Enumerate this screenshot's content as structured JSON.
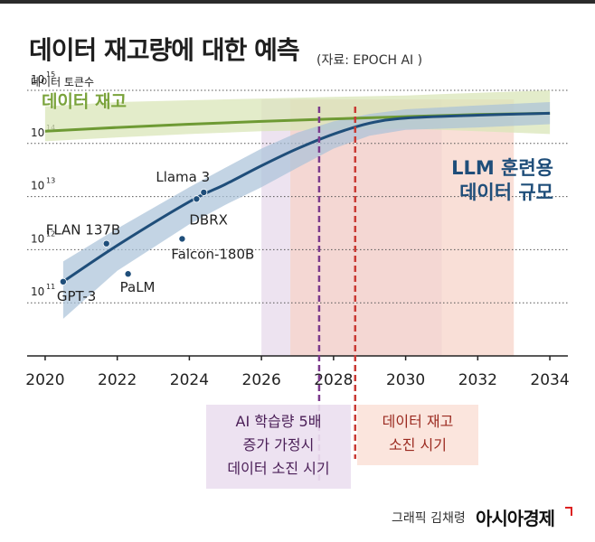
{
  "header": {
    "title": "데이터 재고량에 대한 예측",
    "source": "(자료: EPOCH AI )"
  },
  "footer": {
    "credit": "그래픽 김채령",
    "brand": "아시아경제"
  },
  "chart_data": {
    "type": "line",
    "ylabel": "데이터 토큰수",
    "yscale": "log",
    "ylim": [
      10000000000.0,
      1000000000000000.0
    ],
    "xlim": [
      2019.5,
      2034.5
    ],
    "x_ticks": [
      2020,
      2022,
      2024,
      2026,
      2028,
      2030,
      2032,
      2034
    ],
    "y_ticks": [
      {
        "value": 100000000000.0,
        "base": "10",
        "exp": "11"
      },
      {
        "value": 1000000000000.0,
        "base": "10",
        "exp": "12"
      },
      {
        "value": 10000000000000.0,
        "base": "10",
        "exp": "13"
      },
      {
        "value": 100000000000000.0,
        "base": "10",
        "exp": "14"
      },
      {
        "value": 1000000000000000.0,
        "base": "10",
        "exp": "15"
      }
    ],
    "series": [
      {
        "name": "데이터 재고",
        "color": "#6e9a34",
        "band_color": "#d9e6b8",
        "x": [
          2020,
          2022,
          2024,
          2026,
          2028,
          2030,
          2032,
          2034
        ],
        "y": [
          170000000000000.0,
          200000000000000.0,
          230000000000000.0,
          260000000000000.0,
          290000000000000.0,
          320000000000000.0,
          350000000000000.0,
          370000000000000.0
        ],
        "lower": [
          110000000000000.0,
          130000000000000.0,
          150000000000000.0,
          170000000000000.0,
          180000000000000.0,
          190000000000000.0,
          170000000000000.0,
          150000000000000.0
        ],
        "upper": [
          500000000000000.0,
          600000000000000.0,
          650000000000000.0,
          700000000000000.0,
          750000000000000.0,
          800000000000000.0,
          900000000000000.0,
          1000000000000000.0
        ]
      },
      {
        "name": "LLM 훈련용 데이터 규모",
        "label_lines": [
          "LLM 훈련용",
          "데이터 규모"
        ],
        "color": "#1f4e7a",
        "band_color": "#aac2d8",
        "x": [
          2020.5,
          2022,
          2024,
          2025,
          2026,
          2027,
          2028,
          2029,
          2030,
          2032,
          2034
        ],
        "y": [
          250000000000.0,
          1200000000000.0,
          8000000000000.0,
          17000000000000.0,
          38000000000000.0,
          80000000000000.0,
          150000000000000.0,
          240000000000000.0,
          300000000000000.0,
          340000000000000.0,
          370000000000000.0
        ],
        "lower": [
          50000000000.0,
          400000000000.0,
          3000000000000.0,
          7000000000000.0,
          15000000000000.0,
          35000000000000.0,
          80000000000000.0,
          140000000000000.0,
          180000000000000.0,
          200000000000000.0,
          230000000000000.0
        ],
        "upper": [
          600000000000.0,
          2500000000000.0,
          15000000000000.0,
          35000000000000.0,
          80000000000000.0,
          160000000000000.0,
          260000000000000.0,
          360000000000000.0,
          440000000000000.0,
          520000000000000.0,
          600000000000000.0
        ]
      }
    ],
    "models": [
      {
        "label": "GPT-3",
        "x": 2020.5,
        "y": 250000000000.0
      },
      {
        "label": "FLAN 137B",
        "x": 2021.7,
        "y": 1300000000000.0
      },
      {
        "label": "PaLM",
        "x": 2022.3,
        "y": 350000000000.0
      },
      {
        "label": "Falcon-180B",
        "x": 2023.8,
        "y": 1600000000000.0
      },
      {
        "label": "Llama 3",
        "x": 2024.4,
        "y": 12000000000000.0
      },
      {
        "label": "DBRX",
        "x": 2024.2,
        "y": 9000000000000.0
      }
    ],
    "projections": [
      {
        "name": "AI 학습량 5배 증가 가정시 데이터 소진 시기",
        "label_lines": [
          "AI 학습량 5배",
          "증가 가정시",
          "데이터 소진 시기"
        ],
        "year": 2027.6,
        "range": [
          2026,
          2031
        ],
        "line_color": "#7b3a8c",
        "band_color": "#e6d7ea"
      },
      {
        "name": "데이터 재고 소진 시기",
        "label_lines": [
          "데이터 재고",
          "소진 시기"
        ],
        "year": 2028.6,
        "range": [
          2026.8,
          2033
        ],
        "line_color": "#c93a34",
        "band_color": "#f6d2c6"
      }
    ]
  }
}
